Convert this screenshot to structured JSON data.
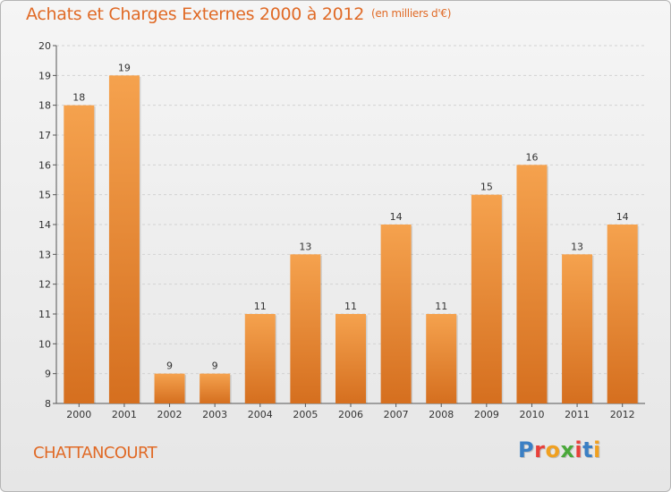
{
  "title": "Achats et Charges Externes 2000 à 2012",
  "subtitle": "(en milliers d'€)",
  "town": "CHATTANCOURT",
  "logo": {
    "letters": [
      "P",
      "r",
      "o",
      "x",
      "i",
      "t",
      "i"
    ]
  },
  "colors": {
    "accent": "#e06a26",
    "bar_top": "#f5a24e",
    "bar_bottom": "#d56f1f",
    "logo": [
      "#3b7fc4",
      "#e8403a",
      "#f0a020",
      "#4aa83a",
      "#e8403a",
      "#3b7fc4",
      "#f0a020"
    ]
  },
  "chart_data": {
    "type": "bar",
    "title": "Achats et Charges Externes 2000 à 2012",
    "subtitle": "(en milliers d'€)",
    "categories": [
      "2000",
      "2001",
      "2002",
      "2003",
      "2004",
      "2005",
      "2006",
      "2007",
      "2008",
      "2009",
      "2010",
      "2011",
      "2012"
    ],
    "values": [
      18,
      19,
      9,
      9,
      11,
      13,
      11,
      14,
      11,
      15,
      16,
      13,
      14
    ],
    "ylim": [
      8,
      20
    ],
    "yticks": [
      8,
      9,
      10,
      11,
      12,
      13,
      14,
      15,
      16,
      17,
      18,
      19,
      20
    ],
    "grid": true,
    "data_labels": true
  }
}
